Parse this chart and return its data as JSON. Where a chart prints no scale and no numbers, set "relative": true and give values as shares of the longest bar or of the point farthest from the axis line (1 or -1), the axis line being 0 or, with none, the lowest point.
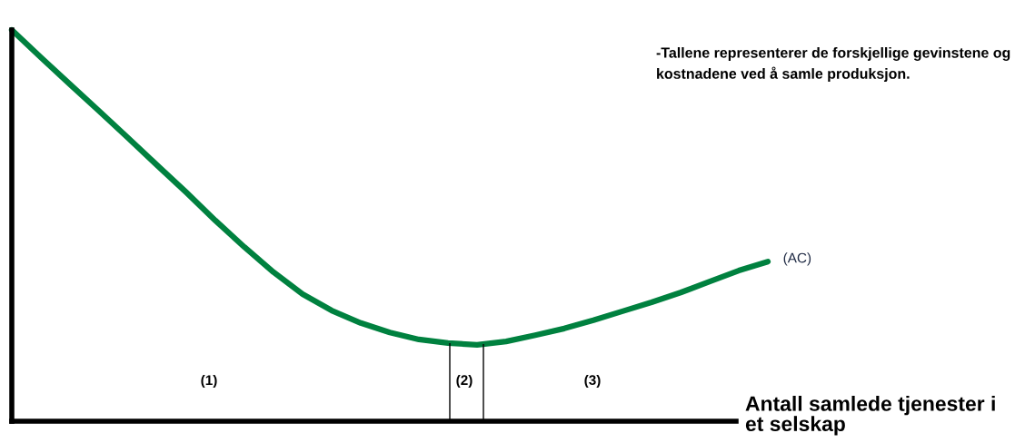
{
  "chart_data": {
    "type": "line",
    "relative": true,
    "xlabel": "Antall samlede tjenester i et selskap",
    "annotations": [
      "-Tallene representerer de forskjellige gevinstene og kostnadene ved å samle produksjon.",
      "(1)",
      "(2)",
      "(3)"
    ],
    "categories": [
      null,
      null,
      null,
      null,
      null,
      null,
      null,
      null,
      null,
      null,
      null,
      null,
      null,
      null,
      null,
      null,
      null,
      null,
      null,
      null,
      null,
      null,
      null,
      null,
      null,
      null,
      null
    ],
    "series": [
      {
        "name": "(AC)",
        "color": "#00813f",
        "values": [
          1.0,
          0.93,
          0.861,
          0.793,
          0.724,
          0.654,
          0.585,
          0.513,
          0.445,
          0.381,
          0.325,
          0.283,
          0.251,
          0.227,
          0.209,
          0.2,
          0.195,
          0.204,
          0.22,
          0.237,
          0.258,
          0.281,
          0.304,
          0.329,
          0.357,
          0.385,
          0.408
        ]
      }
    ],
    "marker": "none",
    "line_style": "solid"
  }
}
